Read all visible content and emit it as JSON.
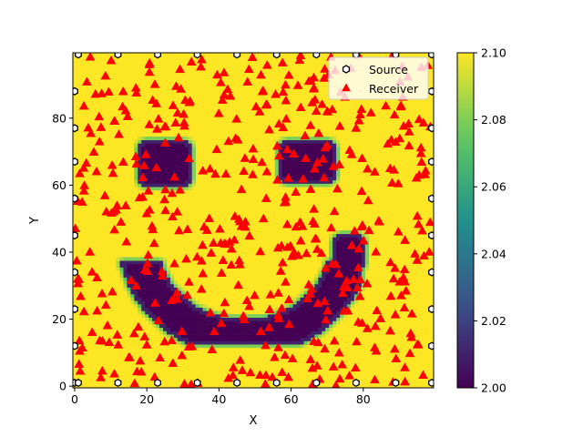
{
  "chart_data": {
    "type": "heatmap",
    "title": "",
    "xlabel": "X",
    "ylabel": "Y",
    "xlim": [
      0,
      99
    ],
    "ylim": [
      0,
      99
    ],
    "x_ticks": [
      0,
      20,
      40,
      60,
      80
    ],
    "y_ticks": [
      0,
      20,
      40,
      60,
      80
    ],
    "grid": false,
    "legend_placement": "top-right",
    "field": {
      "description_values": "velocity model: background 2.10, smiley features 2.00",
      "background_value": 2.1,
      "feature_value": 2.0,
      "features": [
        {
          "shape": "rect",
          "x": [
            18,
            32
          ],
          "y": [
            60,
            73
          ]
        },
        {
          "shape": "rect",
          "x": [
            57,
            72
          ],
          "y": [
            61,
            73
          ]
        },
        {
          "shape": "arc",
          "center": [
            47,
            44
          ],
          "radius": 26,
          "y_bottom": [
            14,
            24
          ]
        },
        {
          "shape": "rect",
          "x": [
            72,
            80
          ],
          "y": [
            35,
            45
          ]
        }
      ]
    },
    "colorbar": {
      "cmap": "viridis",
      "min": 2.0,
      "max": 2.1,
      "ticks": [
        "2.00",
        "2.02",
        "2.04",
        "2.06",
        "2.08",
        "2.10"
      ]
    },
    "series": [
      {
        "name": "Source",
        "marker": "hexagon",
        "color": "#000000",
        "fill": "#ffffff",
        "x": [
          1,
          12,
          23,
          34,
          45,
          56,
          67,
          78,
          89,
          99,
          0,
          0,
          0,
          0,
          0,
          0,
          0,
          0,
          0,
          99,
          99,
          99,
          99,
          99,
          99,
          99,
          99,
          99,
          1,
          12,
          23,
          34,
          45,
          56,
          67,
          78,
          89
        ],
        "y": [
          99,
          99,
          99,
          99,
          99,
          99,
          99,
          99,
          99,
          99,
          88,
          77,
          67,
          56,
          45,
          34,
          23,
          12,
          1,
          88,
          77,
          67,
          56,
          45,
          34,
          23,
          12,
          1,
          1,
          1,
          1,
          1,
          1,
          1,
          1,
          1,
          1
        ]
      },
      {
        "name": "Receiver",
        "marker": "triangle",
        "color": "#ff0000",
        "count": 500
      }
    ],
    "colors": {
      "high": "#fde725",
      "low": "#440154",
      "receiver": "#ff0000"
    }
  }
}
